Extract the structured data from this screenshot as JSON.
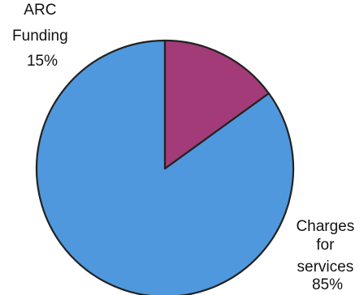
{
  "chart_data": {
    "type": "pie",
    "slices": [
      {
        "label": [
          "Charges",
          "for",
          "services"
        ],
        "value_label": "85%",
        "value": 85,
        "color": "#4f98dd"
      },
      {
        "label": [
          "ARC",
          "Funding"
        ],
        "value_label": "15%",
        "value": 15,
        "color": "#a23b78"
      }
    ]
  }
}
